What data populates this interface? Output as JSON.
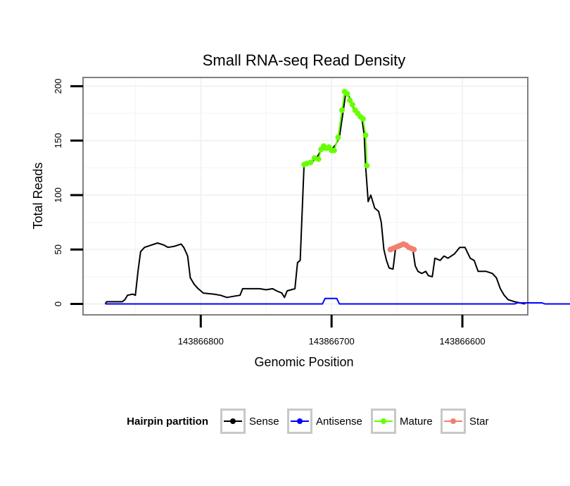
{
  "chart_data": {
    "type": "line",
    "title": "Small RNA-seq Read Density",
    "xlabel": "Genomic Position",
    "ylabel": "Total Reads",
    "x_reversed": true,
    "xlim": [
      143866890,
      143866550
    ],
    "ylim": [
      -10,
      208
    ],
    "x_ticks": [
      143866800,
      143866700,
      143866600
    ],
    "x_tick_labels": [
      "143866800",
      "143866700",
      "143866600"
    ],
    "y_ticks": [
      0,
      50,
      100,
      150,
      200
    ],
    "y_tick_labels": [
      "0",
      "50",
      "100",
      "150",
      "200"
    ],
    "grid": true,
    "legend": {
      "title": "Hairpin partition",
      "position": "bottom",
      "entries": [
        {
          "name": "Sense",
          "color": "#000000"
        },
        {
          "name": "Antisense",
          "color": "#0000ff"
        },
        {
          "name": "Mature",
          "color": "#66ff00"
        },
        {
          "name": "Star",
          "color": "#f08070"
        }
      ]
    },
    "series": [
      {
        "name": "Sense",
        "color": "#000000",
        "points": [
          [
            143866873,
            0
          ],
          [
            143866872,
            2
          ],
          [
            143866860,
            2
          ],
          [
            143866858,
            4
          ],
          [
            143866856,
            8
          ],
          [
            143866852,
            9
          ],
          [
            143866850,
            8
          ],
          [
            143866848,
            30
          ],
          [
            143866846,
            48
          ],
          [
            143866843,
            52
          ],
          [
            143866838,
            54
          ],
          [
            143866833,
            56
          ],
          [
            143866828,
            54
          ],
          [
            143866825,
            52
          ],
          [
            143866820,
            53
          ],
          [
            143866815,
            55
          ],
          [
            143866813,
            52
          ],
          [
            143866810,
            44
          ],
          [
            143866808,
            24
          ],
          [
            143866805,
            18
          ],
          [
            143866802,
            14
          ],
          [
            143866798,
            10
          ],
          [
            143866790,
            9
          ],
          [
            143866785,
            8
          ],
          [
            143866780,
            6
          ],
          [
            143866775,
            7
          ],
          [
            143866770,
            8
          ],
          [
            143866768,
            14
          ],
          [
            143866755,
            14
          ],
          [
            143866750,
            13
          ],
          [
            143866745,
            14
          ],
          [
            143866742,
            12
          ],
          [
            143866738,
            10
          ],
          [
            143866736,
            6
          ],
          [
            143866734,
            12
          ],
          [
            143866728,
            14
          ],
          [
            143866726,
            38
          ],
          [
            143866724,
            40
          ],
          [
            143866721,
            128
          ],
          [
            143866716,
            130
          ],
          [
            143866712,
            133
          ],
          [
            143866708,
            141
          ],
          [
            143866704,
            143
          ],
          [
            143866700,
            142
          ],
          [
            143866697,
            146
          ],
          [
            143866694,
            153
          ],
          [
            143866691,
            178
          ],
          [
            143866689,
            195
          ],
          [
            143866686,
            189
          ],
          [
            143866683,
            179
          ],
          [
            143866680,
            175
          ],
          [
            143866677,
            172
          ],
          [
            143866675,
            155
          ],
          [
            143866674,
            127
          ],
          [
            143866672,
            94
          ],
          [
            143866670,
            100
          ],
          [
            143866667,
            88
          ],
          [
            143866664,
            85
          ],
          [
            143866662,
            75
          ],
          [
            143866660,
            50
          ],
          [
            143866658,
            40
          ],
          [
            143866656,
            33
          ],
          [
            143866653,
            32
          ],
          [
            143866651,
            52
          ],
          [
            143866648,
            54
          ],
          [
            143866645,
            55
          ],
          [
            143866642,
            52
          ],
          [
            143866638,
            51
          ],
          [
            143866636,
            35
          ],
          [
            143866634,
            30
          ],
          [
            143866631,
            28
          ],
          [
            143866628,
            30
          ],
          [
            143866626,
            26
          ],
          [
            143866623,
            25
          ],
          [
            143866621,
            42
          ],
          [
            143866617,
            40
          ],
          [
            143866614,
            44
          ],
          [
            143866611,
            42
          ],
          [
            143866606,
            46
          ],
          [
            143866602,
            52
          ],
          [
            143866598,
            52
          ],
          [
            143866594,
            42
          ],
          [
            143866591,
            40
          ],
          [
            143866588,
            30
          ],
          [
            143866582,
            30
          ],
          [
            143866577,
            28
          ],
          [
            143866574,
            24
          ],
          [
            143866571,
            14
          ],
          [
            143866568,
            8
          ],
          [
            143866565,
            4
          ],
          [
            143866560,
            2
          ],
          [
            143866556,
            1
          ],
          [
            143866552,
            0
          ]
        ]
      },
      {
        "name": "Antisense",
        "color": "#0000ff",
        "points": [
          [
            143866873,
            0
          ],
          [
            143866707,
            0
          ],
          [
            143866705,
            5
          ],
          [
            143866696,
            5
          ],
          [
            143866694,
            0
          ],
          [
            143866560,
            0
          ],
          [
            143866558,
            1
          ],
          [
            143866539,
            1
          ],
          [
            143866537,
            0
          ],
          [
            143866509,
            0
          ]
        ]
      },
      {
        "name": "Mature",
        "color": "#66ff00",
        "points": [
          [
            143866721,
            128
          ],
          [
            143866719,
            129
          ],
          [
            143866716,
            130
          ],
          [
            143866713,
            134
          ],
          [
            143866710,
            133
          ],
          [
            143866708,
            142
          ],
          [
            143866706,
            145
          ],
          [
            143866704,
            143
          ],
          [
            143866702,
            144
          ],
          [
            143866700,
            141
          ],
          [
            143866698,
            141
          ],
          [
            143866695,
            153
          ],
          [
            143866692,
            178
          ],
          [
            143866690,
            195
          ],
          [
            143866688,
            193
          ],
          [
            143866686,
            187
          ],
          [
            143866684,
            183
          ],
          [
            143866682,
            178
          ],
          [
            143866680,
            175
          ],
          [
            143866678,
            172
          ],
          [
            143866676,
            170
          ],
          [
            143866674,
            155
          ],
          [
            143866673,
            127
          ]
        ]
      },
      {
        "name": "Star",
        "color": "#f08070",
        "points": [
          [
            143866655,
            50
          ],
          [
            143866653,
            51
          ],
          [
            143866651,
            52
          ],
          [
            143866649,
            53
          ],
          [
            143866647,
            54
          ],
          [
            143866645,
            55
          ],
          [
            143866643,
            54
          ],
          [
            143866641,
            52
          ],
          [
            143866639,
            51
          ],
          [
            143866637,
            50
          ]
        ]
      }
    ]
  }
}
